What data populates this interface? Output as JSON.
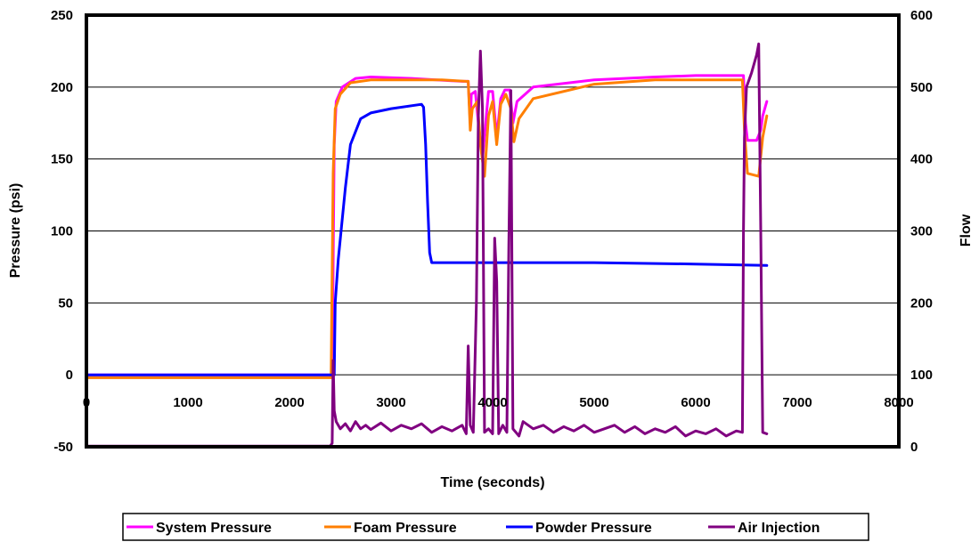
{
  "chart_data": {
    "type": "line",
    "title": "",
    "xlabel": "Time (seconds)",
    "ylabel": "Pressure (psi)",
    "y2label": "Flow",
    "xlim": [
      0,
      8000
    ],
    "ylim": [
      -50,
      250
    ],
    "y2lim": [
      0,
      600
    ],
    "x_ticks": [
      "0",
      "1000",
      "2000",
      "3000",
      "4000",
      "5000",
      "6000",
      "7000",
      "8000"
    ],
    "y_ticks": [
      "250",
      "200",
      "150",
      "100",
      "50",
      "0",
      "-50"
    ],
    "y2_ticks": [
      "600",
      "500",
      "400",
      "300",
      "200",
      "100",
      "0"
    ],
    "grid": true,
    "legend_position": "bottom",
    "series": [
      {
        "name": "System Pressure",
        "axis": "left",
        "color": "#ff00ff",
        "points": [
          [
            0,
            0
          ],
          [
            2420,
            0
          ],
          [
            2440,
            160
          ],
          [
            2460,
            190
          ],
          [
            2520,
            200
          ],
          [
            2650,
            206
          ],
          [
            2800,
            207
          ],
          [
            3200,
            206
          ],
          [
            3700,
            204
          ],
          [
            3760,
            204
          ],
          [
            3780,
            175
          ],
          [
            3790,
            195
          ],
          [
            3830,
            197
          ],
          [
            3860,
            175
          ],
          [
            3900,
            150
          ],
          [
            3960,
            197
          ],
          [
            4000,
            197
          ],
          [
            4040,
            165
          ],
          [
            4080,
            192
          ],
          [
            4120,
            198
          ],
          [
            4170,
            198
          ],
          [
            4200,
            175
          ],
          [
            4240,
            190
          ],
          [
            4400,
            200
          ],
          [
            5000,
            205
          ],
          [
            5600,
            207
          ],
          [
            6000,
            208
          ],
          [
            6450,
            208
          ],
          [
            6470,
            208
          ],
          [
            6490,
            175
          ],
          [
            6510,
            163
          ],
          [
            6600,
            163
          ],
          [
            6640,
            170
          ],
          [
            6660,
            180
          ],
          [
            6700,
            190
          ]
        ]
      },
      {
        "name": "Foam Pressure",
        "axis": "left",
        "color": "#ff7f00",
        "points": [
          [
            0,
            -2
          ],
          [
            2410,
            -2
          ],
          [
            2430,
            140
          ],
          [
            2450,
            185
          ],
          [
            2500,
            195
          ],
          [
            2600,
            203
          ],
          [
            2800,
            205
          ],
          [
            3500,
            205
          ],
          [
            3740,
            204
          ],
          [
            3760,
            204
          ],
          [
            3780,
            170
          ],
          [
            3800,
            185
          ],
          [
            3850,
            190
          ],
          [
            3880,
            160
          ],
          [
            3920,
            138
          ],
          [
            3960,
            180
          ],
          [
            4000,
            190
          ],
          [
            4040,
            160
          ],
          [
            4080,
            188
          ],
          [
            4130,
            195
          ],
          [
            4180,
            185
          ],
          [
            4210,
            162
          ],
          [
            4260,
            178
          ],
          [
            4400,
            192
          ],
          [
            5000,
            202
          ],
          [
            5600,
            205
          ],
          [
            6460,
            205
          ],
          [
            6480,
            170
          ],
          [
            6510,
            140
          ],
          [
            6620,
            138
          ],
          [
            6660,
            165
          ],
          [
            6700,
            180
          ]
        ]
      },
      {
        "name": "Powder Pressure",
        "axis": "left",
        "color": "#0000ff",
        "points": [
          [
            0,
            0
          ],
          [
            2440,
            0
          ],
          [
            2450,
            50
          ],
          [
            2480,
            80
          ],
          [
            2550,
            130
          ],
          [
            2600,
            160
          ],
          [
            2700,
            178
          ],
          [
            2800,
            182
          ],
          [
            3000,
            185
          ],
          [
            3300,
            188
          ],
          [
            3320,
            186
          ],
          [
            3340,
            160
          ],
          [
            3360,
            120
          ],
          [
            3380,
            85
          ],
          [
            3400,
            78
          ],
          [
            4000,
            78
          ],
          [
            5000,
            78
          ],
          [
            6000,
            77
          ],
          [
            6700,
            76
          ]
        ]
      },
      {
        "name": "Air Injection",
        "axis": "right",
        "color": "#800080",
        "points": [
          [
            0,
            1
          ],
          [
            2400,
            1
          ],
          [
            2420,
            5
          ],
          [
            2430,
            120
          ],
          [
            2440,
            50
          ],
          [
            2460,
            35
          ],
          [
            2500,
            25
          ],
          [
            2550,
            32
          ],
          [
            2600,
            22
          ],
          [
            2650,
            35
          ],
          [
            2700,
            25
          ],
          [
            2750,
            30
          ],
          [
            2800,
            24
          ],
          [
            2900,
            33
          ],
          [
            3000,
            22
          ],
          [
            3100,
            30
          ],
          [
            3200,
            25
          ],
          [
            3300,
            32
          ],
          [
            3400,
            20
          ],
          [
            3500,
            28
          ],
          [
            3600,
            22
          ],
          [
            3700,
            30
          ],
          [
            3740,
            18
          ],
          [
            3760,
            140
          ],
          [
            3780,
            30
          ],
          [
            3810,
            20
          ],
          [
            3840,
            200
          ],
          [
            3860,
            460
          ],
          [
            3880,
            550
          ],
          [
            3900,
            470
          ],
          [
            3920,
            20
          ],
          [
            3960,
            25
          ],
          [
            4000,
            18
          ],
          [
            4020,
            290
          ],
          [
            4040,
            230
          ],
          [
            4060,
            18
          ],
          [
            4100,
            30
          ],
          [
            4140,
            20
          ],
          [
            4160,
            280
          ],
          [
            4180,
            495
          ],
          [
            4200,
            25
          ],
          [
            4260,
            15
          ],
          [
            4300,
            35
          ],
          [
            4400,
            25
          ],
          [
            4500,
            30
          ],
          [
            4600,
            20
          ],
          [
            4700,
            28
          ],
          [
            4800,
            22
          ],
          [
            4900,
            30
          ],
          [
            5000,
            20
          ],
          [
            5100,
            25
          ],
          [
            5200,
            30
          ],
          [
            5300,
            20
          ],
          [
            5400,
            28
          ],
          [
            5500,
            18
          ],
          [
            5600,
            25
          ],
          [
            5700,
            20
          ],
          [
            5800,
            28
          ],
          [
            5900,
            15
          ],
          [
            6000,
            22
          ],
          [
            6100,
            18
          ],
          [
            6200,
            25
          ],
          [
            6300,
            15
          ],
          [
            6400,
            22
          ],
          [
            6460,
            20
          ],
          [
            6470,
            300
          ],
          [
            6480,
            430
          ],
          [
            6500,
            500
          ],
          [
            6550,
            520
          ],
          [
            6600,
            545
          ],
          [
            6620,
            560
          ],
          [
            6640,
            300
          ],
          [
            6660,
            20
          ],
          [
            6700,
            18
          ]
        ]
      }
    ]
  }
}
